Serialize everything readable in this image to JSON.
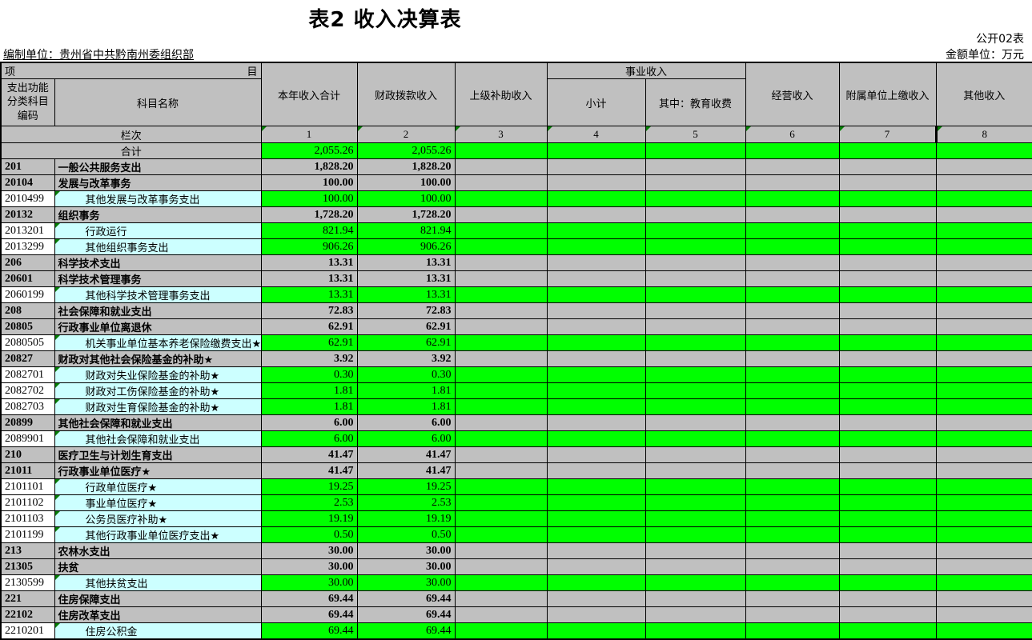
{
  "page": {
    "title": "表2 收入决算表",
    "doc_code": "公开02表",
    "unit_label": "编制单位：贵州省中共黔南州委组织部",
    "amount_unit": "金额单位：万元"
  },
  "colors": {
    "summary_row_bg": "#C0C0C0",
    "detail_value_bg": "#00FF00",
    "detail_name_bg": "#CCFFFF",
    "marker_triangle": "#067D06"
  },
  "table": {
    "header": {
      "item_left": "项",
      "item_right": "目",
      "code_label": "支出功能分类科目编码",
      "name_label": "科目名称",
      "col_total": "本年收入合计",
      "col_fiscal": "财政拨款收入",
      "col_superior": "上级补助收入",
      "business_group": "事业收入",
      "col_subtotal": "小计",
      "col_edu": "其中：教育收费",
      "col_operating": "经营收入",
      "col_affiliate": "附属单位上缴收入",
      "col_other": "其他收入",
      "lanci_label": "栏次",
      "column_numbers": [
        "1",
        "2",
        "3",
        "4",
        "5",
        "6",
        "7",
        "8"
      ]
    },
    "total_row": {
      "label": "合计",
      "c1": "2,055.26",
      "c2": "2,055.26"
    },
    "rows": [
      {
        "code": "201",
        "name": "一般公共服务支出",
        "c1": "1,828.20",
        "c2": "1,828.20",
        "level": "summary"
      },
      {
        "code": "20104",
        "name": "发展与改革事务",
        "c1": "100.00",
        "c2": "100.00",
        "level": "summary"
      },
      {
        "code": "2010499",
        "name": "其他发展与改革事务支出",
        "c1": "100.00",
        "c2": "100.00",
        "level": "detail"
      },
      {
        "code": "20132",
        "name": "组织事务",
        "c1": "1,728.20",
        "c2": "1,728.20",
        "level": "summary"
      },
      {
        "code": "2013201",
        "name": "行政运行",
        "c1": "821.94",
        "c2": "821.94",
        "level": "detail"
      },
      {
        "code": "2013299",
        "name": "其他组织事务支出",
        "c1": "906.26",
        "c2": "906.26",
        "level": "detail"
      },
      {
        "code": "206",
        "name": "科学技术支出",
        "c1": "13.31",
        "c2": "13.31",
        "level": "summary"
      },
      {
        "code": "20601",
        "name": "科学技术管理事务",
        "c1": "13.31",
        "c2": "13.31",
        "level": "summary"
      },
      {
        "code": "2060199",
        "name": "其他科学技术管理事务支出",
        "c1": "13.31",
        "c2": "13.31",
        "level": "detail"
      },
      {
        "code": "208",
        "name": "社会保障和就业支出",
        "c1": "72.83",
        "c2": "72.83",
        "level": "summary"
      },
      {
        "code": "20805",
        "name": "行政事业单位离退休",
        "c1": "62.91",
        "c2": "62.91",
        "level": "summary"
      },
      {
        "code": "2080505",
        "name": "机关事业单位基本养老保险缴费支出★",
        "c1": "62.91",
        "c2": "62.91",
        "level": "detail"
      },
      {
        "code": "20827",
        "name": "财政对其他社会保险基金的补助★",
        "c1": "3.92",
        "c2": "3.92",
        "level": "summary"
      },
      {
        "code": "2082701",
        "name": "财政对失业保险基金的补助★",
        "c1": "0.30",
        "c2": "0.30",
        "level": "detail"
      },
      {
        "code": "2082702",
        "name": "财政对工伤保险基金的补助★",
        "c1": "1.81",
        "c2": "1.81",
        "level": "detail"
      },
      {
        "code": "2082703",
        "name": "财政对生育保险基金的补助★",
        "c1": "1.81",
        "c2": "1.81",
        "level": "detail"
      },
      {
        "code": "20899",
        "name": "其他社会保障和就业支出",
        "c1": "6.00",
        "c2": "6.00",
        "level": "summary"
      },
      {
        "code": "2089901",
        "name": "其他社会保障和就业支出",
        "c1": "6.00",
        "c2": "6.00",
        "level": "detail"
      },
      {
        "code": "210",
        "name": "医疗卫生与计划生育支出",
        "c1": "41.47",
        "c2": "41.47",
        "level": "summary"
      },
      {
        "code": "21011",
        "name": "行政事业单位医疗★",
        "c1": "41.47",
        "c2": "41.47",
        "level": "summary"
      },
      {
        "code": "2101101",
        "name": "行政单位医疗★",
        "c1": "19.25",
        "c2": "19.25",
        "level": "detail"
      },
      {
        "code": "2101102",
        "name": "事业单位医疗★",
        "c1": "2.53",
        "c2": "2.53",
        "level": "detail"
      },
      {
        "code": "2101103",
        "name": "公务员医疗补助★",
        "c1": "19.19",
        "c2": "19.19",
        "level": "detail"
      },
      {
        "code": "2101199",
        "name": "其他行政事业单位医疗支出★",
        "c1": "0.50",
        "c2": "0.50",
        "level": "detail"
      },
      {
        "code": "213",
        "name": "农林水支出",
        "c1": "30.00",
        "c2": "30.00",
        "level": "summary"
      },
      {
        "code": "21305",
        "name": "扶贫",
        "c1": "30.00",
        "c2": "30.00",
        "level": "summary"
      },
      {
        "code": "2130599",
        "name": "其他扶贫支出",
        "c1": "30.00",
        "c2": "30.00",
        "level": "detail"
      },
      {
        "code": "221",
        "name": "住房保障支出",
        "c1": "69.44",
        "c2": "69.44",
        "level": "summary"
      },
      {
        "code": "22102",
        "name": "住房改革支出",
        "c1": "69.44",
        "c2": "69.44",
        "level": "summary"
      },
      {
        "code": "2210201",
        "name": "住房公积金",
        "c1": "69.44",
        "c2": "69.44",
        "level": "detail"
      }
    ]
  }
}
